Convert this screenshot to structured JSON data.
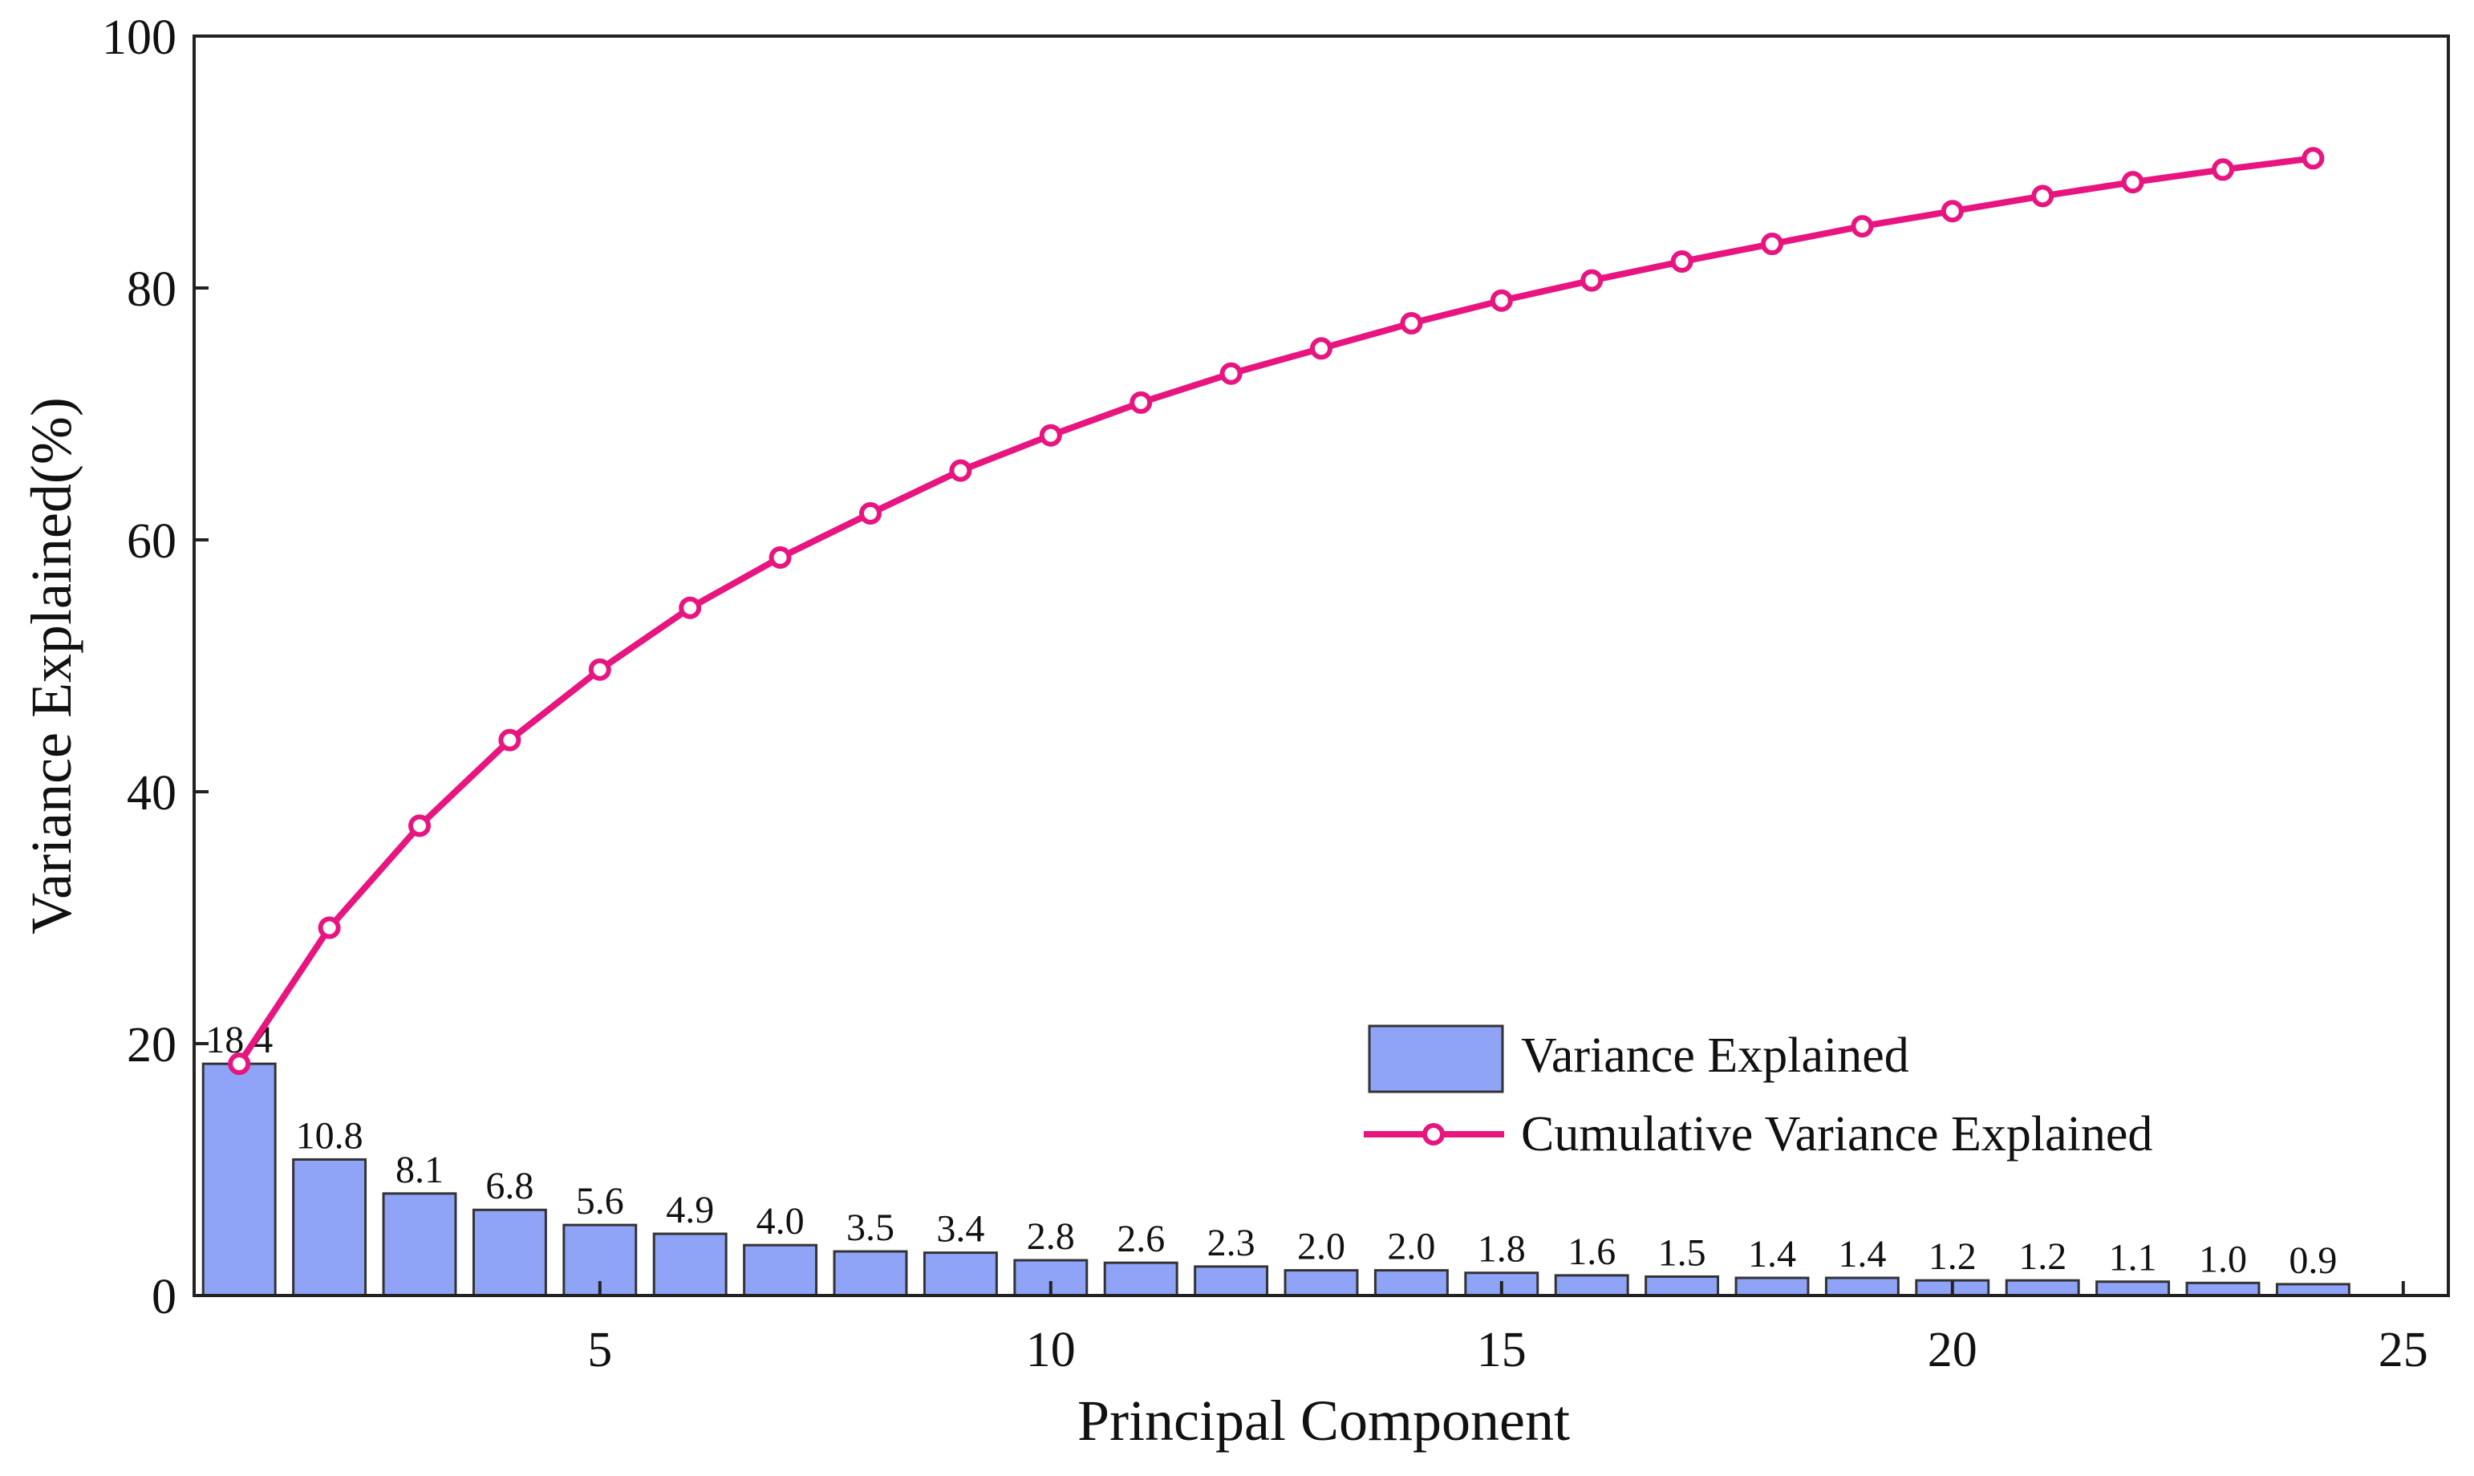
{
  "chart_data": {
    "type": "bar",
    "title": "",
    "xlabel": "Principal Component",
    "ylabel": "Variance Explained(%)",
    "xlim": [
      0.5,
      25.5
    ],
    "ylim": [
      0,
      100
    ],
    "x_ticks": [
      5,
      10,
      15,
      20,
      25
    ],
    "y_ticks": [
      0,
      20,
      40,
      60,
      80,
      100
    ],
    "grid": false,
    "legend_position": "bottom-right",
    "x": [
      1,
      2,
      3,
      4,
      5,
      6,
      7,
      8,
      9,
      10,
      11,
      12,
      13,
      14,
      15,
      16,
      17,
      18,
      19,
      20,
      21,
      22,
      23,
      24
    ],
    "series": [
      {
        "name": "Variance Explained",
        "type": "bar",
        "color": "#8fa3f7",
        "edge_color": "#333333",
        "values": [
          18.4,
          10.8,
          8.1,
          6.8,
          5.6,
          4.9,
          4.0,
          3.5,
          3.4,
          2.8,
          2.6,
          2.3,
          2.0,
          2.0,
          1.8,
          1.6,
          1.5,
          1.4,
          1.4,
          1.2,
          1.2,
          1.1,
          1.0,
          0.9
        ],
        "labels": [
          "18.4",
          "10.8",
          "8.1",
          "6.8",
          "5.6",
          "4.9",
          "4.0",
          "3.5",
          "3.4",
          "2.8",
          "2.6",
          "2.3",
          "2.0",
          "2.0",
          "1.8",
          "1.6",
          "1.5",
          "1.4",
          "1.4",
          "1.2",
          "1.2",
          "1.1",
          "1.0",
          "0.9"
        ]
      },
      {
        "name": "Cumulative Variance Explained",
        "type": "line",
        "color": "#e8147f",
        "marker": "open-circle",
        "values": [
          18.4,
          29.2,
          37.3,
          44.1,
          49.7,
          54.6,
          58.6,
          62.1,
          65.5,
          68.3,
          70.9,
          73.2,
          75.2,
          77.2,
          79.0,
          80.6,
          82.1,
          83.5,
          84.9,
          86.1,
          87.3,
          88.4,
          89.4,
          90.3
        ]
      }
    ]
  }
}
